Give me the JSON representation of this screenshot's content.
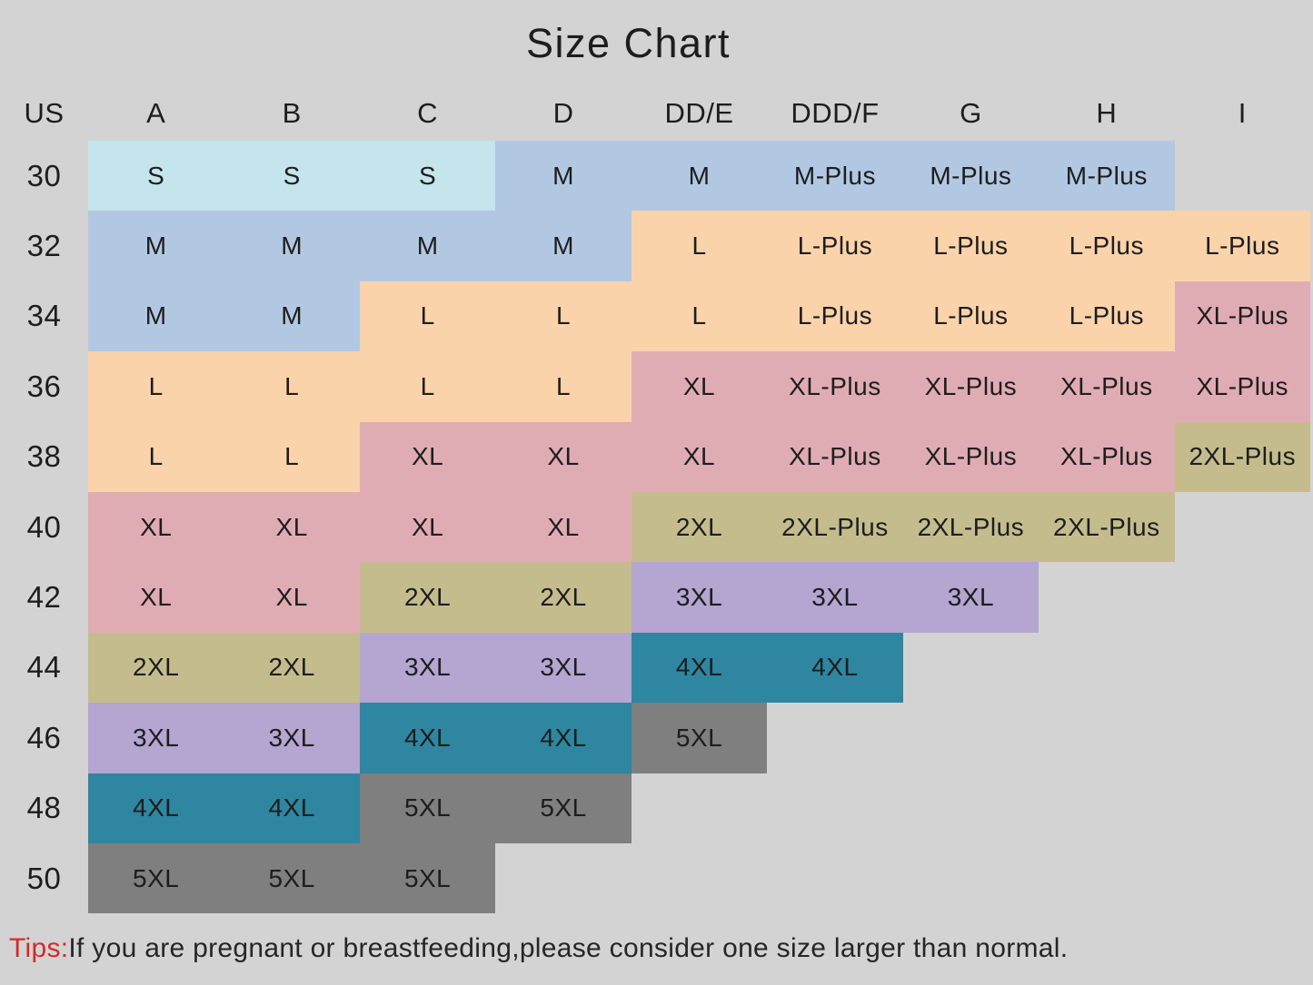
{
  "title": "Size Chart",
  "tips": {
    "label": "Tips:",
    "text": "If you are pregnant or breastfeeding,please consider one size larger than normal."
  },
  "colors": {
    "background": "#d3d3d3",
    "text": "#1d1d1d",
    "tips_label": "#d6282a",
    "cells": {
      "cyan": "#c3e5eb",
      "blue": "#b2c8e2",
      "peach": "#fbd3ab",
      "pink": "#e0acb4",
      "olive": "#c5bc8e",
      "purple": "#b4a5d1",
      "teal": "#2e86a0",
      "gray": "#7f7f7f",
      "none": "transparent"
    }
  },
  "chart_data": {
    "type": "table",
    "title": "Size Chart",
    "columns": [
      "US",
      "A",
      "B",
      "C",
      "D",
      "DD/E",
      "DDD/F",
      "G",
      "H",
      "I"
    ],
    "rows": [
      {
        "label": "30",
        "cells": [
          {
            "text": "S",
            "color": "cyan"
          },
          {
            "text": "S",
            "color": "cyan"
          },
          {
            "text": "S",
            "color": "cyan"
          },
          {
            "text": "M",
            "color": "blue"
          },
          {
            "text": "M",
            "color": "blue"
          },
          {
            "text": "M-Plus",
            "color": "blue"
          },
          {
            "text": "M-Plus",
            "color": "blue"
          },
          {
            "text": "M-Plus",
            "color": "blue"
          },
          {
            "text": "",
            "color": "none"
          }
        ]
      },
      {
        "label": "32",
        "cells": [
          {
            "text": "M",
            "color": "blue"
          },
          {
            "text": "M",
            "color": "blue"
          },
          {
            "text": "M",
            "color": "blue"
          },
          {
            "text": "M",
            "color": "blue"
          },
          {
            "text": "L",
            "color": "peach"
          },
          {
            "text": "L-Plus",
            "color": "peach"
          },
          {
            "text": "L-Plus",
            "color": "peach"
          },
          {
            "text": "L-Plus",
            "color": "peach"
          },
          {
            "text": "L-Plus",
            "color": "peach"
          }
        ]
      },
      {
        "label": "34",
        "cells": [
          {
            "text": "M",
            "color": "blue"
          },
          {
            "text": "M",
            "color": "blue"
          },
          {
            "text": "L",
            "color": "peach"
          },
          {
            "text": "L",
            "color": "peach"
          },
          {
            "text": "L",
            "color": "peach"
          },
          {
            "text": "L-Plus",
            "color": "peach"
          },
          {
            "text": "L-Plus",
            "color": "peach"
          },
          {
            "text": "L-Plus",
            "color": "peach"
          },
          {
            "text": "XL-Plus",
            "color": "pink"
          }
        ]
      },
      {
        "label": "36",
        "cells": [
          {
            "text": "L",
            "color": "peach"
          },
          {
            "text": "L",
            "color": "peach"
          },
          {
            "text": "L",
            "color": "peach"
          },
          {
            "text": "L",
            "color": "peach"
          },
          {
            "text": "XL",
            "color": "pink"
          },
          {
            "text": "XL-Plus",
            "color": "pink"
          },
          {
            "text": "XL-Plus",
            "color": "pink"
          },
          {
            "text": "XL-Plus",
            "color": "pink"
          },
          {
            "text": "XL-Plus",
            "color": "pink"
          }
        ]
      },
      {
        "label": "38",
        "cells": [
          {
            "text": "L",
            "color": "peach"
          },
          {
            "text": "L",
            "color": "peach"
          },
          {
            "text": "XL",
            "color": "pink"
          },
          {
            "text": "XL",
            "color": "pink"
          },
          {
            "text": "XL",
            "color": "pink"
          },
          {
            "text": "XL-Plus",
            "color": "pink"
          },
          {
            "text": "XL-Plus",
            "color": "pink"
          },
          {
            "text": "XL-Plus",
            "color": "pink"
          },
          {
            "text": "2XL-Plus",
            "color": "olive"
          }
        ]
      },
      {
        "label": "40",
        "cells": [
          {
            "text": "XL",
            "color": "pink"
          },
          {
            "text": "XL",
            "color": "pink"
          },
          {
            "text": "XL",
            "color": "pink"
          },
          {
            "text": "XL",
            "color": "pink"
          },
          {
            "text": "2XL",
            "color": "olive"
          },
          {
            "text": "2XL-Plus",
            "color": "olive"
          },
          {
            "text": "2XL-Plus",
            "color": "olive"
          },
          {
            "text": "2XL-Plus",
            "color": "olive"
          },
          {
            "text": "",
            "color": "none"
          }
        ]
      },
      {
        "label": "42",
        "cells": [
          {
            "text": "XL",
            "color": "pink"
          },
          {
            "text": "XL",
            "color": "pink"
          },
          {
            "text": "2XL",
            "color": "olive"
          },
          {
            "text": "2XL",
            "color": "olive"
          },
          {
            "text": "3XL",
            "color": "purple"
          },
          {
            "text": "3XL",
            "color": "purple"
          },
          {
            "text": "3XL",
            "color": "purple"
          },
          {
            "text": "",
            "color": "none"
          },
          {
            "text": "",
            "color": "none"
          }
        ]
      },
      {
        "label": "44",
        "cells": [
          {
            "text": "2XL",
            "color": "olive"
          },
          {
            "text": "2XL",
            "color": "olive"
          },
          {
            "text": "3XL",
            "color": "purple"
          },
          {
            "text": "3XL",
            "color": "purple"
          },
          {
            "text": "4XL",
            "color": "teal"
          },
          {
            "text": "4XL",
            "color": "teal"
          },
          {
            "text": "",
            "color": "none"
          },
          {
            "text": "",
            "color": "none"
          },
          {
            "text": "",
            "color": "none"
          }
        ]
      },
      {
        "label": "46",
        "cells": [
          {
            "text": "3XL",
            "color": "purple"
          },
          {
            "text": "3XL",
            "color": "purple"
          },
          {
            "text": "4XL",
            "color": "teal"
          },
          {
            "text": "4XL",
            "color": "teal"
          },
          {
            "text": "5XL",
            "color": "gray"
          },
          {
            "text": "",
            "color": "none"
          },
          {
            "text": "",
            "color": "none"
          },
          {
            "text": "",
            "color": "none"
          },
          {
            "text": "",
            "color": "none"
          }
        ]
      },
      {
        "label": "48",
        "cells": [
          {
            "text": "4XL",
            "color": "teal"
          },
          {
            "text": "4XL",
            "color": "teal"
          },
          {
            "text": "5XL",
            "color": "gray"
          },
          {
            "text": "5XL",
            "color": "gray"
          },
          {
            "text": "",
            "color": "none"
          },
          {
            "text": "",
            "color": "none"
          },
          {
            "text": "",
            "color": "none"
          },
          {
            "text": "",
            "color": "none"
          },
          {
            "text": "",
            "color": "none"
          }
        ]
      },
      {
        "label": "50",
        "cells": [
          {
            "text": "5XL",
            "color": "gray"
          },
          {
            "text": "5XL",
            "color": "gray"
          },
          {
            "text": "5XL",
            "color": "gray"
          },
          {
            "text": "",
            "color": "none"
          },
          {
            "text": "",
            "color": "none"
          },
          {
            "text": "",
            "color": "none"
          },
          {
            "text": "",
            "color": "none"
          },
          {
            "text": "",
            "color": "none"
          },
          {
            "text": "",
            "color": "none"
          }
        ]
      }
    ],
    "note": "Tips:If you are pregnant or breastfeeding,please consider one size larger than normal."
  }
}
